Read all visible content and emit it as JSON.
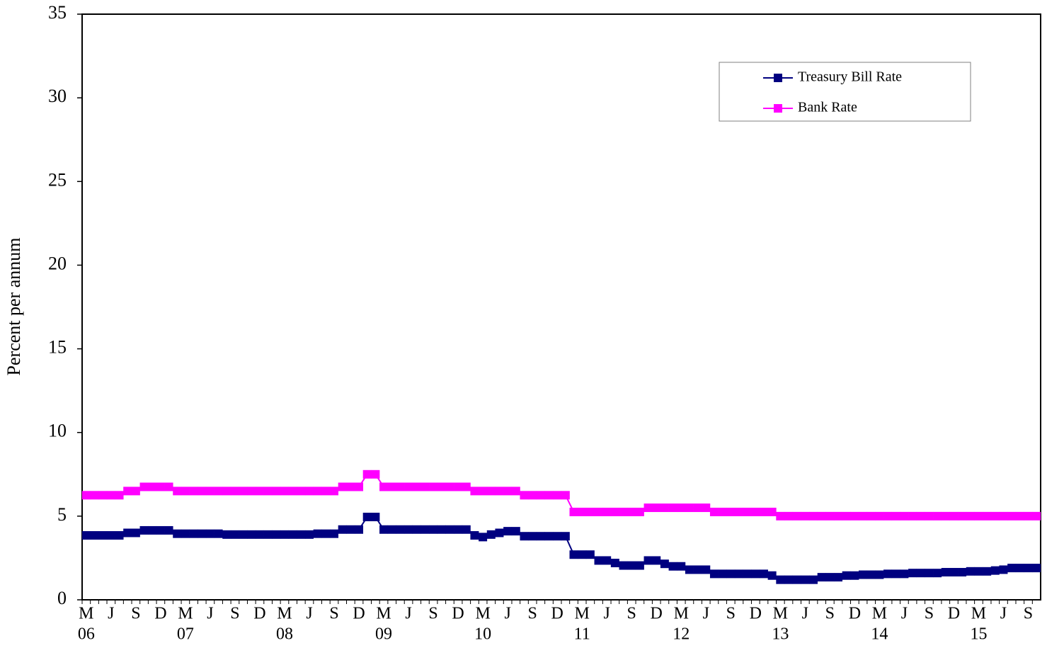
{
  "chart_data": {
    "type": "line",
    "y_label": "Percent per annum",
    "categories": [
      "M",
      null,
      null,
      "J",
      null,
      null,
      "S",
      null,
      null,
      "D",
      null,
      null,
      "M",
      null,
      null,
      "J",
      null,
      null,
      "S",
      null,
      null,
      "D",
      null,
      null,
      "M",
      null,
      null,
      "J",
      null,
      null,
      "S",
      null,
      null,
      "D",
      null,
      null,
      "M",
      null,
      null,
      "J",
      null,
      null,
      "S",
      null,
      null,
      "D",
      null,
      null,
      "M",
      null,
      null,
      "J",
      null,
      null,
      "S",
      null,
      null,
      "D",
      null,
      null,
      "M",
      null,
      null,
      "J",
      null,
      null,
      "S",
      null,
      null,
      "D",
      null,
      null,
      "M",
      null,
      null,
      "J",
      null,
      null,
      "S",
      null,
      null,
      "D",
      null,
      null,
      "M",
      null,
      null,
      "J",
      null,
      null,
      "S",
      null,
      null,
      "D",
      null,
      null,
      "M",
      null,
      null,
      "J",
      null,
      null,
      "S",
      null,
      null,
      "D",
      null,
      null,
      "M",
      null,
      null,
      "J",
      null,
      null,
      "S",
      null
    ],
    "years": [
      "06",
      null,
      null,
      null,
      null,
      null,
      null,
      null,
      null,
      null,
      null,
      null,
      "07",
      null,
      null,
      null,
      null,
      null,
      null,
      null,
      null,
      null,
      null,
      null,
      "08",
      null,
      null,
      null,
      null,
      null,
      null,
      null,
      null,
      null,
      null,
      null,
      "09",
      null,
      null,
      null,
      null,
      null,
      null,
      null,
      null,
      null,
      null,
      null,
      "10",
      null,
      null,
      null,
      null,
      null,
      null,
      null,
      null,
      null,
      null,
      null,
      "11",
      null,
      null,
      null,
      null,
      null,
      null,
      null,
      null,
      null,
      null,
      null,
      "12",
      null,
      null,
      null,
      null,
      null,
      null,
      null,
      null,
      null,
      null,
      null,
      "13",
      null,
      null,
      null,
      null,
      null,
      null,
      null,
      null,
      null,
      null,
      null,
      "14",
      null,
      null,
      null,
      null,
      null,
      null,
      null,
      null,
      null,
      null,
      null,
      "15",
      null,
      null,
      null,
      null,
      null,
      null,
      null
    ],
    "series": [
      {
        "name": "Treasury Bill Rate",
        "color": "#000080",
        "values": [
          3.85,
          3.85,
          3.85,
          3.85,
          3.85,
          4.0,
          4.0,
          4.15,
          4.15,
          4.15,
          4.15,
          3.95,
          3.95,
          3.95,
          3.95,
          3.95,
          3.95,
          3.9,
          3.9,
          3.9,
          3.9,
          3.9,
          3.9,
          3.9,
          3.9,
          3.9,
          3.9,
          3.9,
          3.95,
          3.95,
          3.95,
          4.2,
          4.2,
          4.2,
          4.95,
          4.95,
          4.2,
          4.2,
          4.2,
          4.2,
          4.2,
          4.2,
          4.2,
          4.2,
          4.2,
          4.2,
          4.2,
          3.85,
          3.75,
          3.9,
          4.0,
          4.1,
          4.1,
          3.8,
          3.8,
          3.8,
          3.8,
          3.8,
          3.8,
          2.7,
          2.7,
          2.7,
          2.35,
          2.35,
          2.2,
          2.05,
          2.05,
          2.05,
          2.35,
          2.35,
          2.15,
          2.0,
          2.0,
          1.8,
          1.8,
          1.8,
          1.55,
          1.55,
          1.55,
          1.55,
          1.55,
          1.55,
          1.55,
          1.45,
          1.2,
          1.2,
          1.2,
          1.2,
          1.2,
          1.35,
          1.35,
          1.35,
          1.45,
          1.45,
          1.5,
          1.5,
          1.5,
          1.55,
          1.55,
          1.55,
          1.6,
          1.6,
          1.6,
          1.6,
          1.65,
          1.65,
          1.65,
          1.7,
          1.7,
          1.7,
          1.75,
          1.8,
          1.9,
          1.9,
          1.9,
          1.9
        ]
      },
      {
        "name": "Bank Rate",
        "color": "#ff00ff",
        "values": [
          6.25,
          6.25,
          6.25,
          6.25,
          6.25,
          6.5,
          6.5,
          6.75,
          6.75,
          6.75,
          6.75,
          6.5,
          6.5,
          6.5,
          6.5,
          6.5,
          6.5,
          6.5,
          6.5,
          6.5,
          6.5,
          6.5,
          6.5,
          6.5,
          6.5,
          6.5,
          6.5,
          6.5,
          6.5,
          6.5,
          6.5,
          6.75,
          6.75,
          6.75,
          7.5,
          7.5,
          6.75,
          6.75,
          6.75,
          6.75,
          6.75,
          6.75,
          6.75,
          6.75,
          6.75,
          6.75,
          6.75,
          6.5,
          6.5,
          6.5,
          6.5,
          6.5,
          6.5,
          6.25,
          6.25,
          6.25,
          6.25,
          6.25,
          6.25,
          5.25,
          5.25,
          5.25,
          5.25,
          5.25,
          5.25,
          5.25,
          5.25,
          5.25,
          5.5,
          5.5,
          5.5,
          5.5,
          5.5,
          5.5,
          5.5,
          5.5,
          5.25,
          5.25,
          5.25,
          5.25,
          5.25,
          5.25,
          5.25,
          5.25,
          5.0,
          5.0,
          5.0,
          5.0,
          5.0,
          5.0,
          5.0,
          5.0,
          5.0,
          5.0,
          5.0,
          5.0,
          5.0,
          5.0,
          5.0,
          5.0,
          5.0,
          5.0,
          5.0,
          5.0,
          5.0,
          5.0,
          5.0,
          5.0,
          5.0,
          5.0,
          5.0,
          5.0,
          5.0,
          5.0,
          5.0,
          5.0
        ]
      }
    ],
    "ylim": [
      0,
      35
    ],
    "yticks": [
      0,
      5,
      10,
      15,
      20,
      25,
      30,
      35
    ],
    "grid": false,
    "legend": "top-right"
  }
}
